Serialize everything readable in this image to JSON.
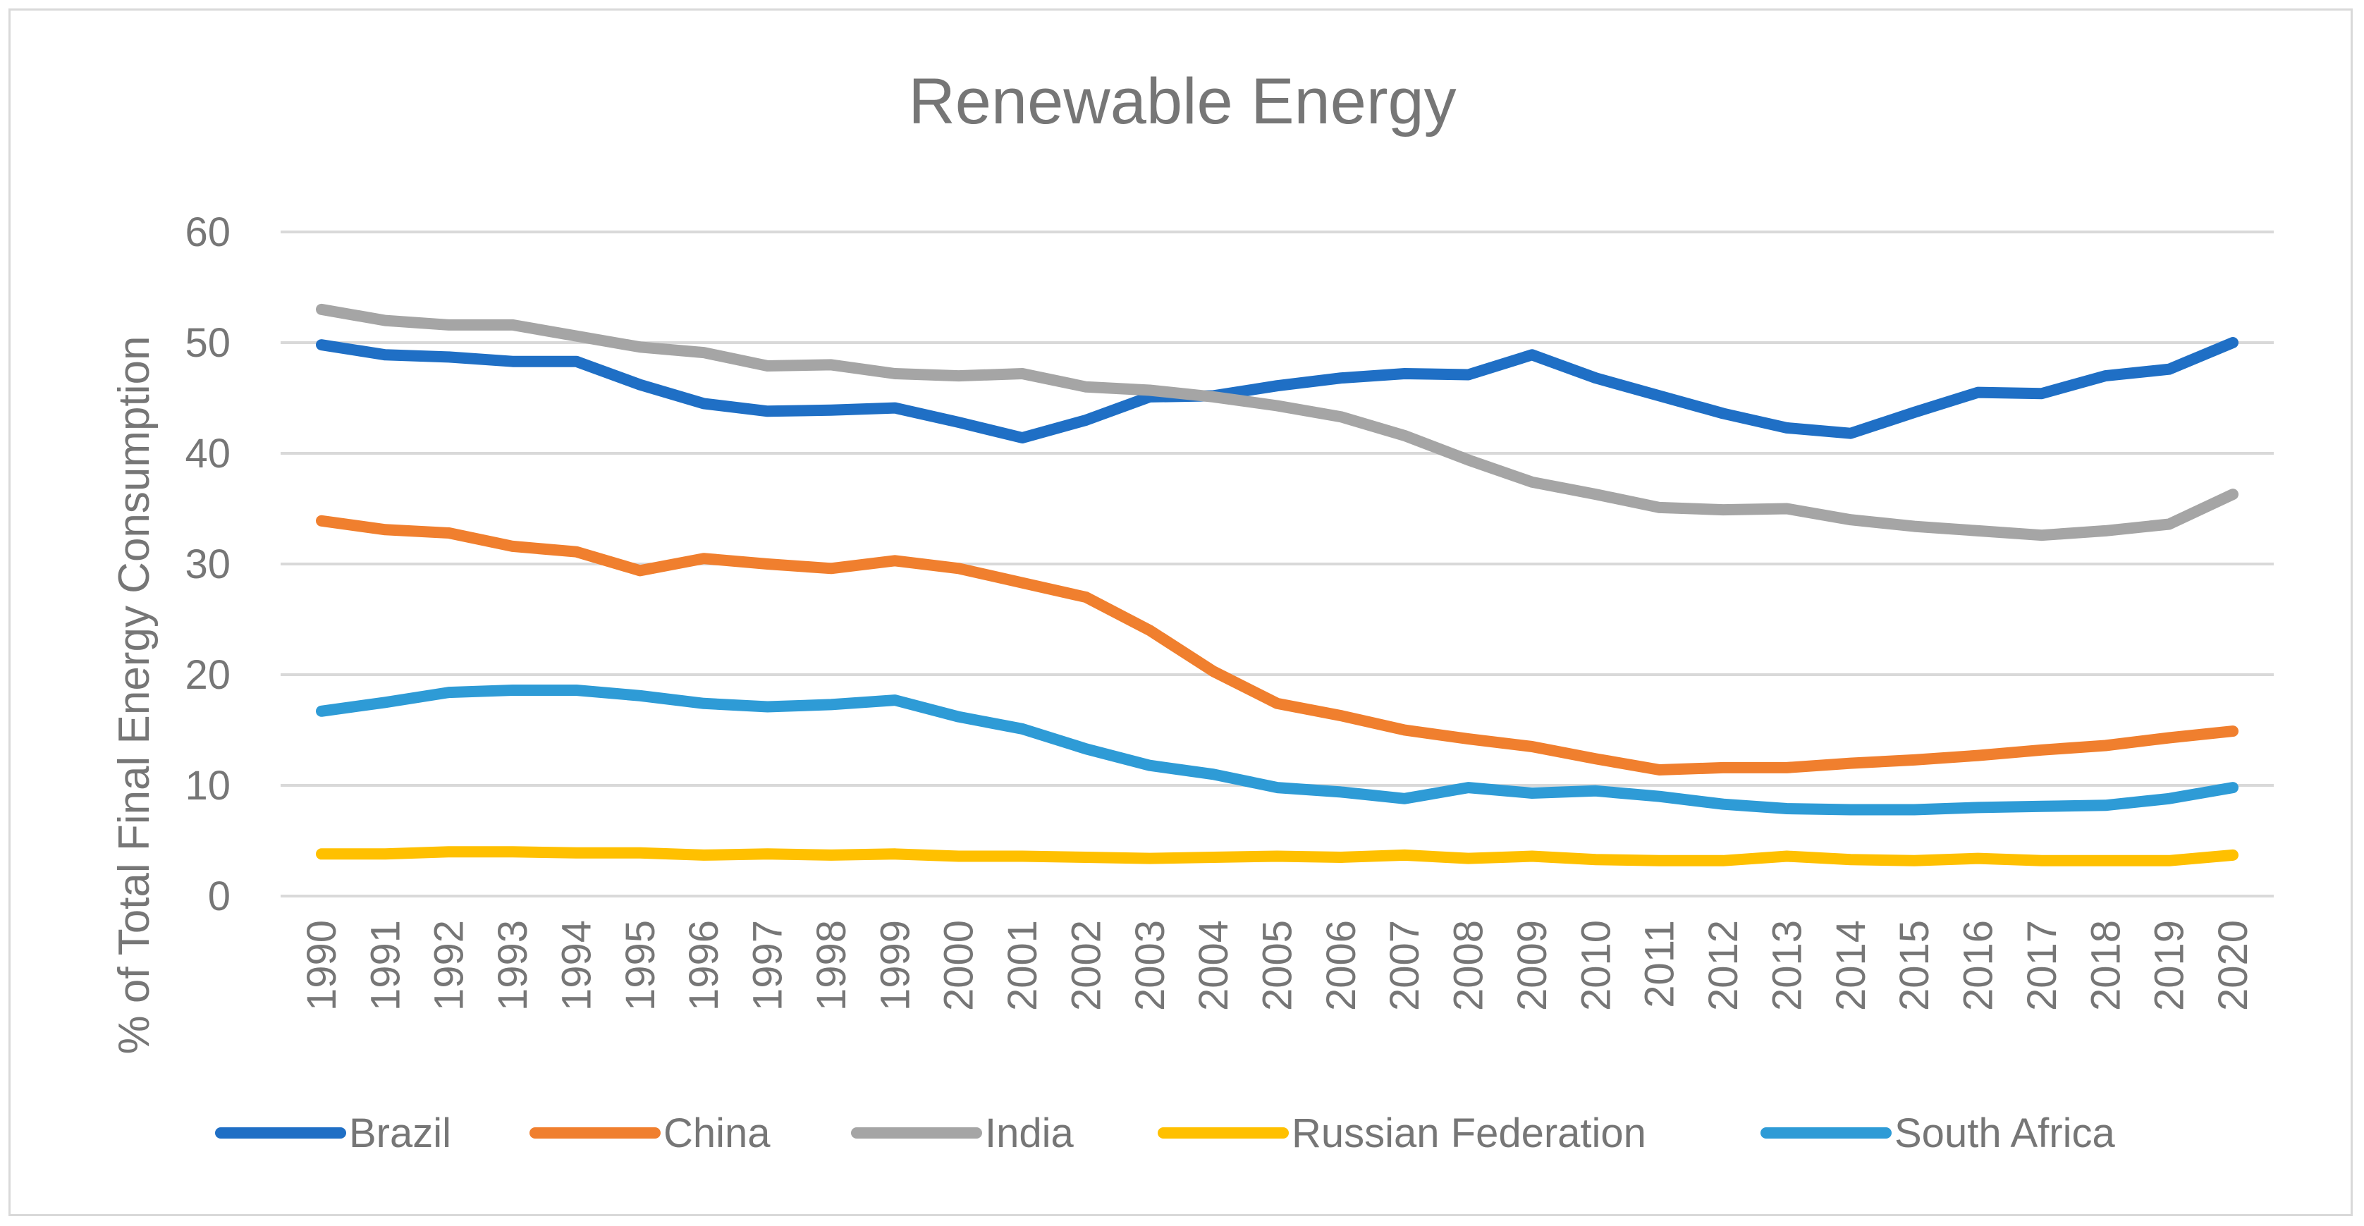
{
  "chart_data": {
    "type": "line",
    "title": "Renewable Energy",
    "xlabel": "",
    "ylabel": "% of Total Final Energy Consumption",
    "ylim": [
      0,
      60
    ],
    "yticks": [
      0,
      10,
      20,
      30,
      40,
      50,
      60
    ],
    "grid": true,
    "legend_position": "bottom",
    "categories": [
      "1990",
      "1991",
      "1992",
      "1993",
      "1994",
      "1995",
      "1996",
      "1997",
      "1998",
      "1999",
      "2000",
      "2001",
      "2002",
      "2003",
      "2004",
      "2005",
      "2006",
      "2007",
      "2008",
      "2009",
      "2010",
      "2011",
      "2012",
      "2013",
      "2014",
      "2015",
      "2016",
      "2017",
      "2018",
      "2019",
      "2020"
    ],
    "series": [
      {
        "name": "Brazil",
        "color": "#1f6fc5",
        "values": [
          49.8,
          48.9,
          48.7,
          48.3,
          48.3,
          46.2,
          44.5,
          43.8,
          43.9,
          44.1,
          42.8,
          41.4,
          43.0,
          45.1,
          45.2,
          46.1,
          46.8,
          47.2,
          47.1,
          48.9,
          46.8,
          45.2,
          43.6,
          42.3,
          41.8,
          43.7,
          45.5,
          45.4,
          47.0,
          47.6,
          50.0
        ]
      },
      {
        "name": "China",
        "color": "#f07f2e",
        "values": [
          33.9,
          33.1,
          32.8,
          31.6,
          31.1,
          29.4,
          30.5,
          30.0,
          29.6,
          30.3,
          29.6,
          28.3,
          27.0,
          24.0,
          20.3,
          17.4,
          16.3,
          15.0,
          14.2,
          13.5,
          12.4,
          11.4,
          11.6,
          11.6,
          12.0,
          12.3,
          12.7,
          13.2,
          13.6,
          14.3,
          14.9
        ]
      },
      {
        "name": "India",
        "color": "#a5a5a5",
        "values": [
          53.0,
          52.0,
          51.6,
          51.6,
          50.6,
          49.6,
          49.1,
          47.9,
          48.0,
          47.2,
          47.0,
          47.2,
          46.0,
          45.7,
          45.1,
          44.3,
          43.3,
          41.6,
          39.4,
          37.4,
          36.3,
          35.1,
          34.9,
          35.0,
          34.0,
          33.4,
          33.0,
          32.6,
          33.0,
          33.6,
          36.3
        ]
      },
      {
        "name": "Russian Federation",
        "color": "#ffc000",
        "values": [
          3.8,
          3.8,
          4.0,
          4.0,
          3.9,
          3.9,
          3.7,
          3.8,
          3.7,
          3.8,
          3.6,
          3.6,
          3.5,
          3.4,
          3.5,
          3.6,
          3.5,
          3.7,
          3.4,
          3.6,
          3.3,
          3.2,
          3.2,
          3.6,
          3.3,
          3.2,
          3.4,
          3.2,
          3.2,
          3.2,
          3.7
        ]
      },
      {
        "name": "South Africa",
        "color": "#2e9bd6",
        "values": [
          16.7,
          17.5,
          18.4,
          18.6,
          18.6,
          18.1,
          17.4,
          17.1,
          17.3,
          17.7,
          16.2,
          15.1,
          13.3,
          11.8,
          11.0,
          9.8,
          9.4,
          8.8,
          9.8,
          9.3,
          9.5,
          9.0,
          8.3,
          7.9,
          7.8,
          7.8,
          8.0,
          8.1,
          8.2,
          8.8,
          9.8
        ]
      }
    ]
  }
}
